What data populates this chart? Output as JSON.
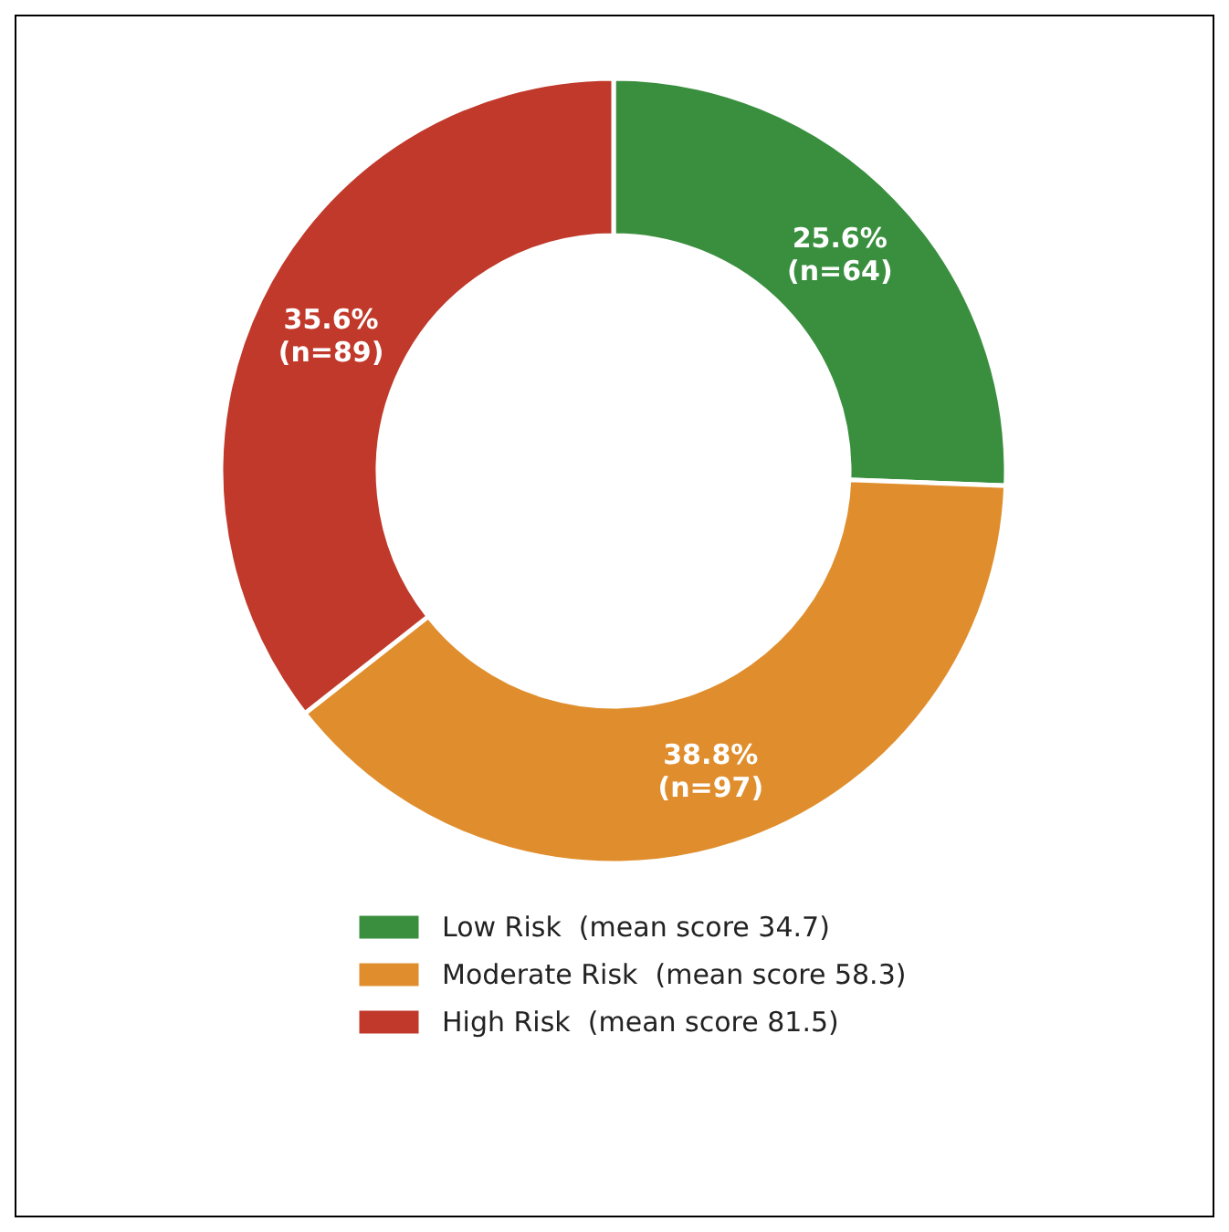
{
  "chart_data": {
    "type": "donut",
    "categories": [
      "Low Risk  (mean score 34.7)",
      "Moderate Risk  (mean score 58.3)",
      "High Risk  (mean score 81.5)"
    ],
    "values": [
      64,
      97,
      89
    ],
    "colors": [
      "#3a8f3f",
      "#e08e2d",
      "#c0392b"
    ],
    "value_labels": [
      "25.6%\n(n=64)",
      "38.8%\n(n=97)",
      "35.6%\n(n=89)"
    ],
    "legend": "bottom"
  }
}
